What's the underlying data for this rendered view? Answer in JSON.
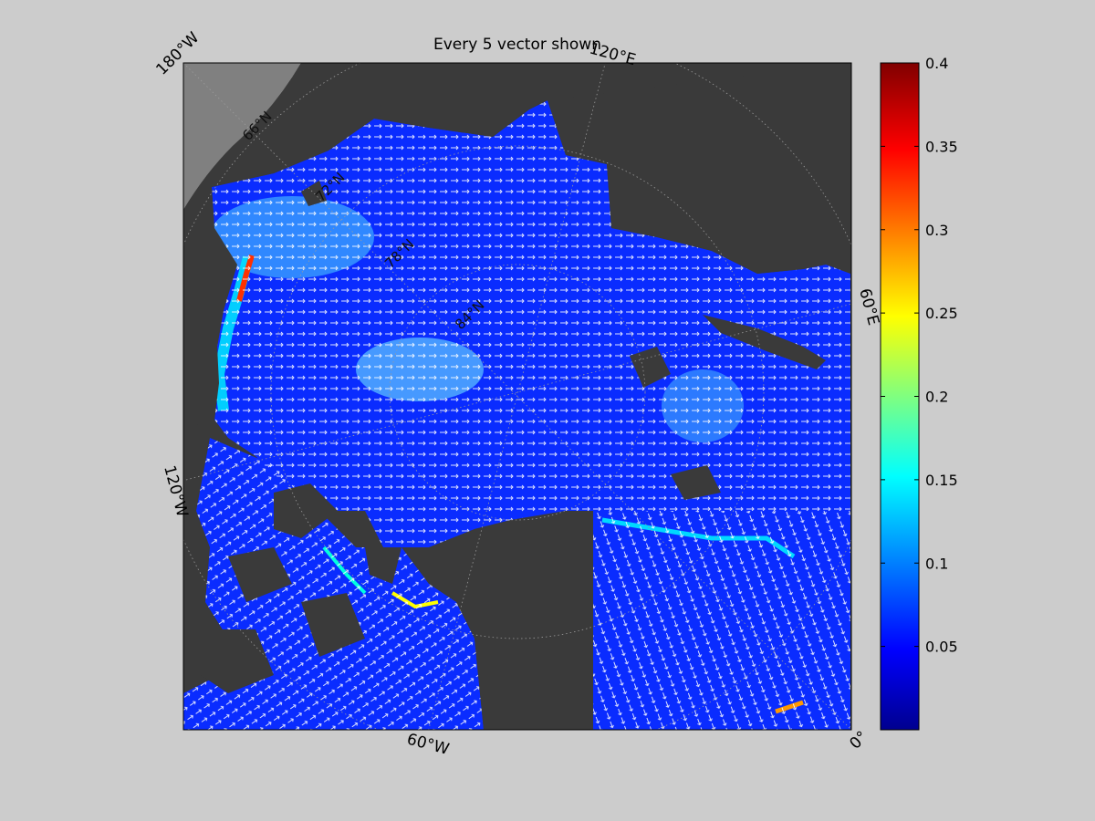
{
  "title": "Every 5 vector shown",
  "map": {
    "projection": "north-polar stereographic",
    "field": "ocean surface current speed with direction vectors",
    "vector_stride": 5,
    "land_color": "#3a3a3a",
    "outside_color": "#808080",
    "vector_color": "#ffffff",
    "frame_labels": [
      {
        "id": "lon-180w",
        "text": "180°W"
      },
      {
        "id": "lon-120e",
        "text": "120°E"
      },
      {
        "id": "lon-60e",
        "text": "60°E"
      },
      {
        "id": "lon-0",
        "text": "0°"
      },
      {
        "id": "lon-60w",
        "text": "60°W"
      },
      {
        "id": "lon-120w",
        "text": "120°W"
      }
    ],
    "lat_labels": [
      {
        "id": "lat-66n",
        "text": "66°N"
      },
      {
        "id": "lat-72n",
        "text": "72°N"
      },
      {
        "id": "lat-78n",
        "text": "78°N"
      },
      {
        "id": "lat-84n",
        "text": "84°N"
      }
    ]
  },
  "colorbar": {
    "colormap": "jet",
    "min": 0,
    "max": 0.4,
    "ticks": [
      {
        "value": 0.05,
        "label": "0.05"
      },
      {
        "value": 0.1,
        "label": "0.1"
      },
      {
        "value": 0.15,
        "label": "0.15"
      },
      {
        "value": 0.2,
        "label": "0.2"
      },
      {
        "value": 0.25,
        "label": "0.25"
      },
      {
        "value": 0.3,
        "label": "0.3"
      },
      {
        "value": 0.35,
        "label": "0.35"
      },
      {
        "value": 0.4,
        "label": "0.4"
      }
    ],
    "colors": [
      "#00008f",
      "#0000ff",
      "#00ffff",
      "#ffff00",
      "#ff0000",
      "#800000"
    ]
  }
}
